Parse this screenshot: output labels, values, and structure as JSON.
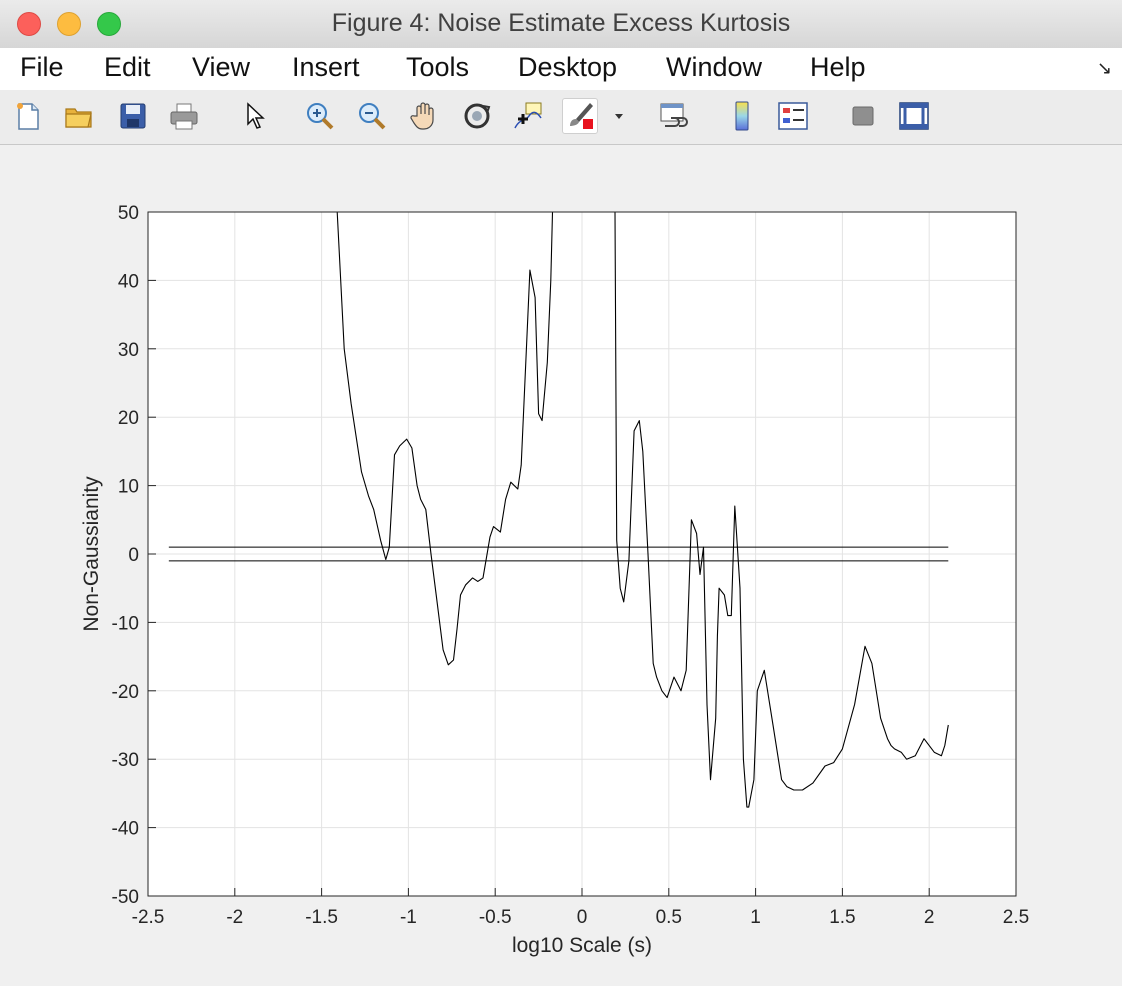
{
  "window": {
    "title": "Figure 4: Noise Estimate Excess Kurtosis"
  },
  "menu": {
    "items": [
      "File",
      "Edit",
      "View",
      "Insert",
      "Tools",
      "Desktop",
      "Window",
      "Help"
    ]
  },
  "toolbar": {
    "icons": [
      "new-figure-icon",
      "open-file-icon",
      "save-icon",
      "print-icon",
      "pointer-icon",
      "zoom-in-icon",
      "zoom-out-icon",
      "pan-hand-icon",
      "rotate-3d-icon",
      "data-cursor-icon",
      "brush-icon",
      "brush-dropdown-icon",
      "link-plot-icon",
      "colorbar-icon",
      "legend-icon",
      "hide-plot-tools-icon",
      "show-plot-tools-icon"
    ]
  },
  "chart_data": {
    "type": "line",
    "title": "",
    "xlabel": "log10 Scale (s)",
    "ylabel": "Non-Gaussianity",
    "xlim": [
      -2.5,
      2.5
    ],
    "ylim": [
      -50,
      50
    ],
    "xticks": [
      "-2.5",
      "-2",
      "-1.5",
      "-1",
      "-0.5",
      "0",
      "0.5",
      "1",
      "1.5",
      "2",
      "2.5"
    ],
    "yticks": [
      "50",
      "40",
      "30",
      "20",
      "10",
      "0",
      "-10",
      "-20",
      "-30",
      "-40",
      "-50"
    ],
    "grid": true,
    "line_color": "#000000",
    "reference_lines": [
      {
        "y": 1.0,
        "x": [
          -2.38,
          2.11
        ]
      },
      {
        "y": -1.0,
        "x": [
          -2.38,
          2.11
        ]
      }
    ],
    "series": [
      {
        "x": [
          -1.41,
          -1.37,
          -1.33,
          -1.27,
          -1.23,
          -1.2,
          -1.16,
          -1.13,
          -1.11,
          -1.08,
          -1.05,
          -1.01,
          -0.98,
          -0.95,
          -0.93,
          -0.9,
          -0.87,
          -0.84,
          -0.8,
          -0.77,
          -0.74,
          -0.72,
          -0.7,
          -0.67,
          -0.63,
          -0.6,
          -0.57,
          -0.53,
          -0.51,
          -0.47,
          -0.44,
          -0.41,
          -0.37,
          -0.35,
          -0.32,
          -0.3,
          -0.27,
          -0.25,
          -0.23,
          -0.2,
          -0.18,
          -0.17,
          -0.16,
          -0.15
        ],
        "y": [
          50,
          30,
          22,
          12,
          8.5,
          6.5,
          2,
          -0.8,
          1,
          14.5,
          15.8,
          16.8,
          15.5,
          10,
          8,
          6.5,
          0,
          -6,
          -14,
          -16.2,
          -15.5,
          -11,
          -6,
          -4.5,
          -3.5,
          -4,
          -3.5,
          2.5,
          4,
          3.2,
          8,
          10.5,
          9.5,
          13,
          30,
          41.5,
          37.5,
          20.5,
          19.5,
          28,
          40,
          50,
          50,
          50
        ]
      },
      {
        "x": [
          0.19,
          0.2,
          0.22,
          0.24,
          0.27,
          0.3,
          0.33,
          0.35,
          0.38,
          0.41,
          0.43,
          0.46,
          0.49,
          0.53,
          0.57,
          0.6,
          0.63,
          0.66,
          0.68,
          0.7,
          0.72,
          0.74,
          0.77,
          0.78,
          0.79,
          0.82,
          0.84,
          0.86,
          0.88,
          0.91,
          0.93,
          0.95,
          0.96,
          0.99,
          1.01,
          1.05,
          1.1,
          1.15,
          1.18,
          1.22,
          1.27,
          1.33,
          1.4,
          1.45,
          1.5,
          1.57,
          1.63,
          1.67,
          1.72,
          1.76,
          1.78,
          1.8,
          1.84,
          1.87,
          1.92,
          1.97,
          2.03,
          2.07,
          2.09,
          2.11
        ],
        "y": [
          50,
          2,
          -5,
          -7,
          -1,
          18,
          19.5,
          15,
          0,
          -16,
          -18,
          -20,
          -21,
          -18,
          -20,
          -17,
          5,
          3,
          -3,
          1,
          -22,
          -33,
          -24,
          -12,
          -5,
          -6,
          -9,
          -9,
          7,
          -5,
          -30,
          -37,
          -37,
          -33,
          -20,
          -17,
          -25,
          -33,
          -34,
          -34.5,
          -34.5,
          -33.5,
          -31,
          -30.5,
          -28.5,
          -22,
          -13.5,
          -16,
          -24,
          -27,
          -28,
          -28.5,
          -29,
          -30,
          -29.5,
          -27,
          -29,
          -29.5,
          -28,
          -25
        ]
      }
    ]
  }
}
